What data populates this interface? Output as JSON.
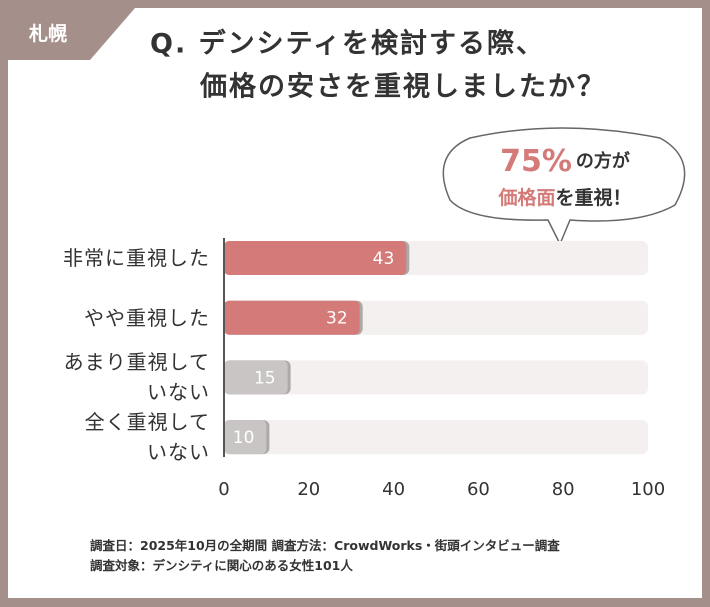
{
  "tab": "札幌",
  "chart_data": {
    "type": "hbar",
    "title": [
      "Q. デンシティを検討する際、",
      "価格の安さを重視しましたか？"
    ],
    "categories": [
      "非常に重視した",
      "やや重視した",
      "あまり重視して\nいない",
      "全く重視して\nいない"
    ],
    "values": [
      43,
      32,
      15,
      10
    ],
    "colors": [
      "#d47a78",
      "#d47a78",
      "#c9c5c4",
      "#c9c5c4"
    ],
    "track_color": "#f4f0ef",
    "xlim": [
      0,
      100
    ],
    "xticks": [
      0,
      20,
      40,
      60,
      80,
      100
    ],
    "annotation": {
      "highlight": "75%",
      "text": "の方が",
      "highlight2": "価格面",
      "text2": "を重視！"
    },
    "source": [
      "調査日：2025年10月の全期間 調査方法：CrowdWorks・街頭インタビュー調査",
      "調査対象：デンシティに関心のある女性101人"
    ]
  }
}
